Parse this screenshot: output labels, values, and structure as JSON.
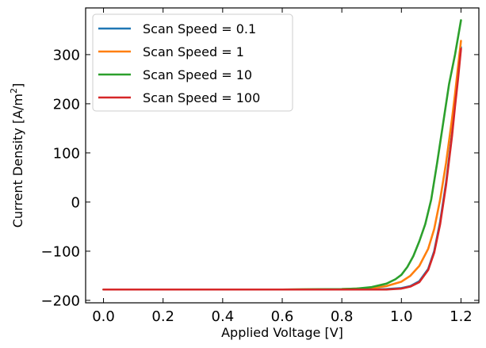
{
  "chart_data": {
    "type": "line",
    "xlabel": "Applied Voltage [V]",
    "ylabel_main": "Current Density [A/m",
    "ylabel_sup": "2",
    "ylabel_end": "]",
    "xlim": [
      -0.06,
      1.26
    ],
    "ylim": [
      -205,
      395
    ],
    "xticks": [
      0.0,
      0.2,
      0.4,
      0.6,
      0.8,
      1.0,
      1.2
    ],
    "xtick_labels": [
      "0.0",
      "0.2",
      "0.4",
      "0.6",
      "0.8",
      "1.0",
      "1.2"
    ],
    "yticks": [
      -200,
      -100,
      0,
      100,
      200,
      300
    ],
    "ytick_labels": [
      "−200",
      "−100",
      "0",
      "100",
      "200",
      "300"
    ],
    "legend_position": "top-left",
    "grid": false,
    "series": [
      {
        "name": "Scan Speed = 0.1",
        "color": "#1f77b4",
        "x": [
          0.0,
          0.2,
          0.4,
          0.6,
          0.8,
          0.9,
          0.95,
          1.0,
          1.03,
          1.06,
          1.09,
          1.11,
          1.13,
          1.15,
          1.17,
          1.18,
          1.19,
          1.2
        ],
        "y": [
          -178,
          -178,
          -178,
          -178,
          -178,
          -178,
          -177,
          -175,
          -171,
          -161,
          -136,
          -100,
          -40,
          40,
          140,
          200,
          260,
          315
        ]
      },
      {
        "name": "Scan Speed = 1",
        "color": "#ff7f0e",
        "x": [
          0.0,
          0.2,
          0.4,
          0.6,
          0.8,
          0.9,
          0.95,
          1.0,
          1.03,
          1.06,
          1.09,
          1.11,
          1.13,
          1.15,
          1.17,
          1.18,
          1.19,
          1.2
        ],
        "y": [
          -178,
          -178,
          -178,
          -178,
          -177,
          -175,
          -171,
          -162,
          -150,
          -130,
          -95,
          -55,
          5,
          80,
          170,
          220,
          275,
          328
        ]
      },
      {
        "name": "Scan Speed = 10",
        "color": "#2ca02c",
        "x": [
          0.0,
          0.2,
          0.4,
          0.6,
          0.8,
          0.85,
          0.9,
          0.95,
          0.98,
          1.0,
          1.02,
          1.04,
          1.06,
          1.08,
          1.1,
          1.12,
          1.14,
          1.16,
          1.18,
          1.2
        ],
        "y": [
          -178,
          -178,
          -178,
          -178,
          -177,
          -176,
          -173,
          -166,
          -157,
          -148,
          -132,
          -110,
          -80,
          -45,
          5,
          80,
          160,
          240,
          300,
          370
        ]
      },
      {
        "name": "Scan Speed = 100",
        "color": "#d62728",
        "x": [
          0.0,
          0.2,
          0.4,
          0.6,
          0.8,
          0.9,
          0.95,
          1.0,
          1.03,
          1.06,
          1.09,
          1.11,
          1.13,
          1.15,
          1.17,
          1.18,
          1.19,
          1.2
        ],
        "y": [
          -178,
          -178,
          -178,
          -178,
          -178,
          -178,
          -178,
          -176,
          -172,
          -163,
          -138,
          -103,
          -45,
          35,
          135,
          195,
          250,
          312
        ]
      }
    ]
  }
}
